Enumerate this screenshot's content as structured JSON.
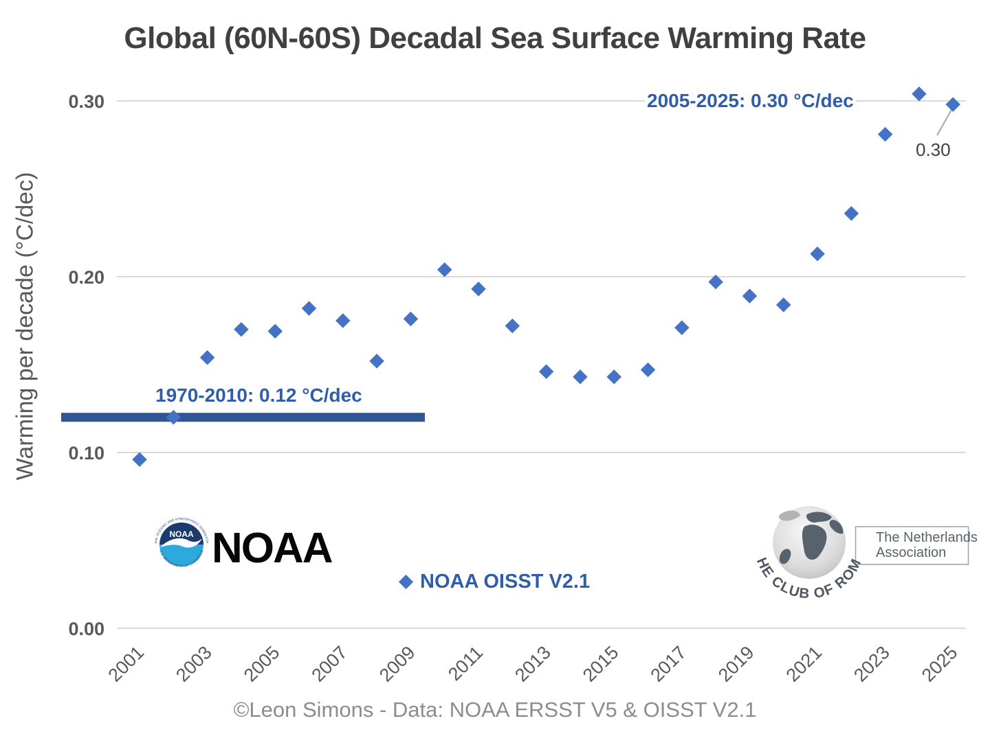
{
  "title": "Global (60N-60S) Decadal Sea Surface Warming Rate",
  "footer": "©Leon Simons - Data: NOAA ERSST V5 & OISST V2.1",
  "annotations": {
    "recent_rate": "2005-2025: 0.30 °C/dec",
    "baseline_rate": "1970-2010: 0.12 °C/dec",
    "last_point_label": "0.30"
  },
  "legend": {
    "label": "NOAA OISST V2.1"
  },
  "logos": {
    "noaa": {
      "wordmark": "NOAA",
      "emblem_text": "NOAA",
      "ring_top": "NATIONAL OCEANIC AND ATMOSPHERIC ADMINISTRATION",
      "ring_bottom": "U.S. DEPARTMENT OF COMMERCE"
    },
    "club_of_rome": {
      "arc_text": "THE CLUB OF ROME",
      "assoc_line1": "The Netherlands",
      "assoc_line2": "Association"
    }
  },
  "colors": {
    "marker": "#4472C4",
    "trend_line": "#2F5597",
    "annotation_blue": "#305DA8",
    "grid": "#D9D9D9",
    "axis_text": "#595959",
    "title_text": "#404040",
    "data_label_text": "#404040",
    "footer_text": "#8C8C8C",
    "leader_line": "#A6A6A6",
    "noaa_navy": "#1C3A6E",
    "noaa_cyan": "#2FA8DC"
  },
  "chart_data": {
    "type": "scatter",
    "title": "Global (60N-60S) Decadal Sea Surface Warming Rate",
    "xlabel": "",
    "ylabel": "Warming per decade (°C/dec)",
    "series": [
      {
        "name": "NOAA OISST V2.1",
        "x": [
          2001,
          2002,
          2003,
          2004,
          2005,
          2006,
          2007,
          2008,
          2009,
          2010,
          2011,
          2012,
          2013,
          2014,
          2015,
          2016,
          2017,
          2018,
          2019,
          2020,
          2021,
          2022,
          2023,
          2024,
          2025
        ],
        "values": [
          0.096,
          0.12,
          0.154,
          0.17,
          0.169,
          0.182,
          0.175,
          0.152,
          0.176,
          0.204,
          0.193,
          0.172,
          0.146,
          0.143,
          0.143,
          0.147,
          0.171,
          0.197,
          0.189,
          0.184,
          0.213,
          0.236,
          0.281,
          0.304,
          0.298
        ]
      }
    ],
    "x_ticks": [
      2001,
      2003,
      2005,
      2007,
      2009,
      2011,
      2013,
      2015,
      2017,
      2019,
      2021,
      2023,
      2025
    ],
    "y_ticks": [
      {
        "label": "0.00",
        "value": 0.0
      },
      {
        "label": "0.10",
        "value": 0.1
      },
      {
        "label": "0.20",
        "value": 0.2
      },
      {
        "label": "0.30",
        "value": 0.3
      }
    ],
    "ylim": [
      0,
      0.32
    ],
    "xlim": [
      2000.3,
      2025.7
    ],
    "grid": "horizontal",
    "legend_position": "bottom-center",
    "reference_line": {
      "label": "1970-2010: 0.12 °C/dec",
      "value": 0.12
    },
    "annotations": [
      {
        "text": "2005-2025: 0.30 °C/dec",
        "role": "recent-trend"
      },
      {
        "text": "1970-2010: 0.12 °C/dec",
        "role": "baseline-trend"
      },
      {
        "text": "0.30",
        "role": "data-label",
        "target_year": 2025
      }
    ]
  }
}
